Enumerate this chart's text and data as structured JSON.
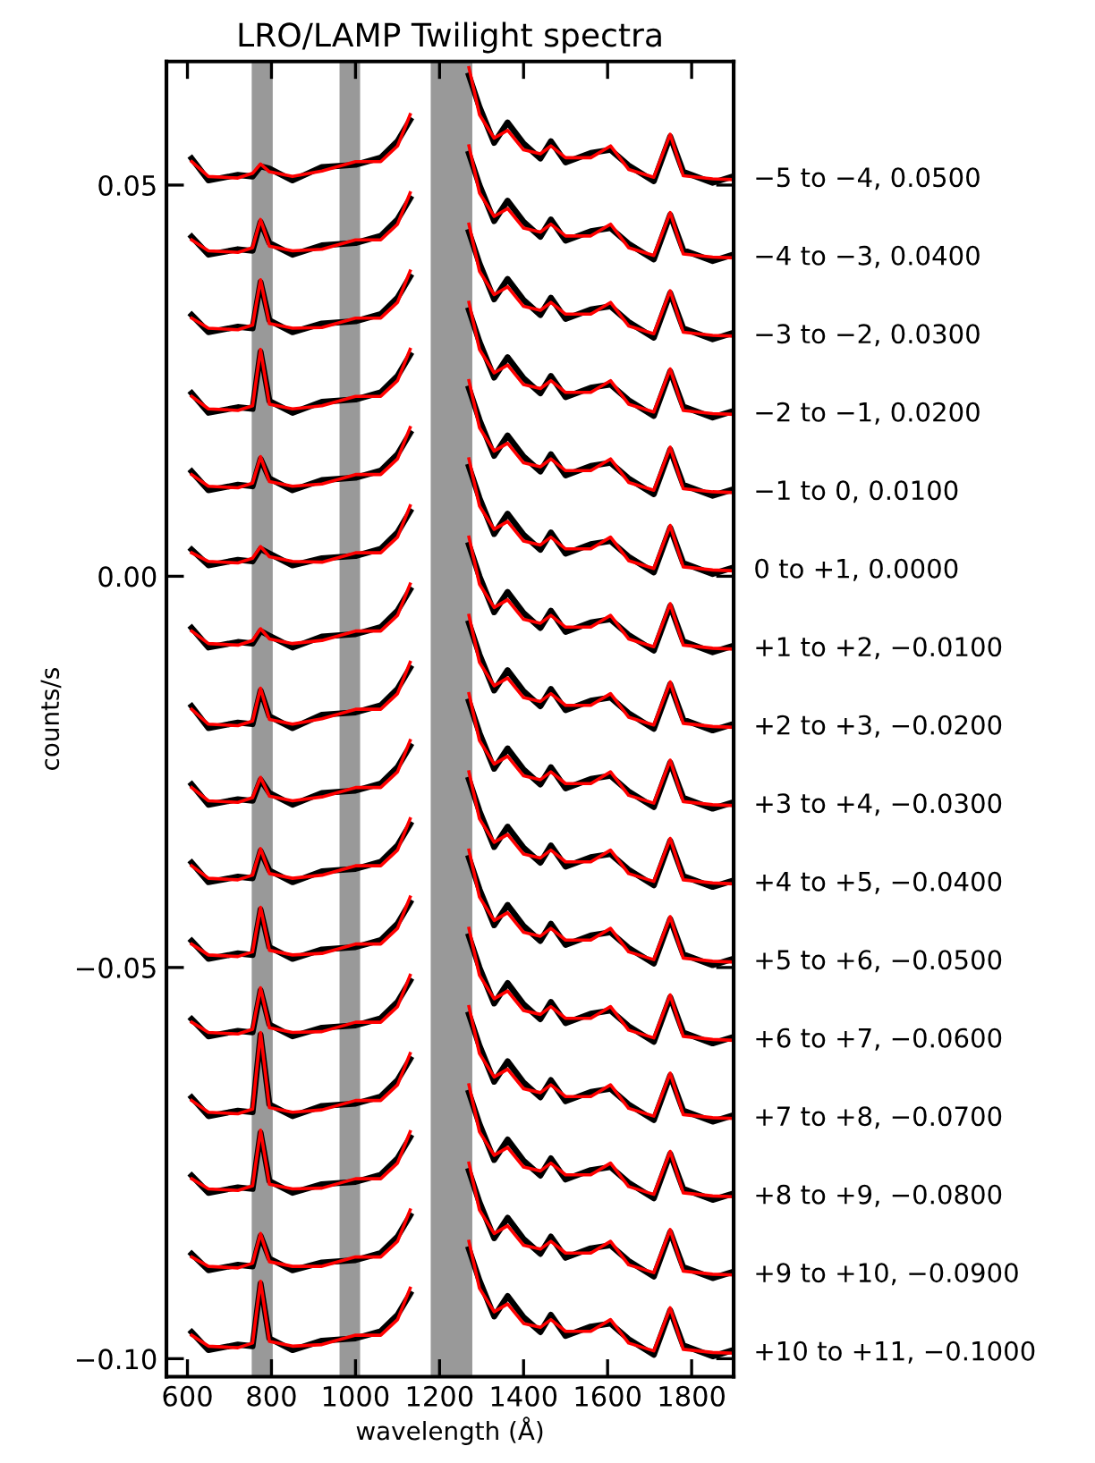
{
  "chart_data": {
    "type": "line",
    "title": "LRO/LAMP Twilight spectra",
    "xlabel": "wavelength (Å)",
    "ylabel": "counts/s",
    "xlim": [
      550,
      1900
    ],
    "ylim": [
      -0.1023,
      0.0658
    ],
    "xticks": [
      600,
      800,
      1000,
      1200,
      1400,
      1600,
      1800
    ],
    "yticks": [
      {
        "value": 0.05,
        "label": "0.05"
      },
      {
        "value": 0.0,
        "label": "0.00"
      },
      {
        "value": -0.05,
        "label": "−0.05"
      },
      {
        "value": -0.1,
        "label": "−0.10"
      }
    ],
    "grid": false,
    "legend": false,
    "line_style": "solid",
    "marker": "none",
    "bands": [
      {
        "axis": "x",
        "from": 753,
        "to": 803,
        "color": "#999999"
      },
      {
        "axis": "x",
        "from": 962,
        "to": 1011,
        "color": "#999999"
      },
      {
        "axis": "x",
        "from": 1179,
        "to": 1278,
        "color": "#999999"
      }
    ],
    "x": [
      610,
      650,
      720,
      755,
      774,
      795,
      850,
      920,
      1000,
      1060,
      1100,
      1130,
      1150,
      1216,
      1270,
      1295,
      1330,
      1362,
      1400,
      1440,
      1465,
      1500,
      1560,
      1607,
      1650,
      1710,
      1749,
      1780,
      1850,
      1898
    ],
    "series": [
      {
        "color": "#000000",
        "values": [
          0.0534,
          0.0506,
          0.0513,
          0.0511,
          0.0524,
          0.0521,
          0.0506,
          0.0523,
          0.0526,
          0.0535,
          0.0556,
          0.0583,
          null,
          null,
          0.064,
          0.06,
          0.0554,
          0.058,
          0.0553,
          0.0534,
          0.0556,
          0.0529,
          0.0541,
          0.0545,
          0.0525,
          0.0505,
          0.0562,
          0.0517,
          0.0503,
          0.0511
        ]
      },
      {
        "name": "−5 to −4, 0.0500",
        "color": "#ff0000",
        "values": [
          0.053,
          0.0511,
          0.0509,
          0.0515,
          0.0527,
          0.0517,
          0.0511,
          0.0518,
          0.053,
          0.053,
          0.055,
          0.059,
          null,
          null,
          0.065,
          0.059,
          0.056,
          0.057,
          0.0545,
          0.054,
          0.055,
          0.0535,
          0.0535,
          0.055,
          0.052,
          0.051,
          0.0565,
          0.0512,
          0.0508,
          0.0507
        ]
      },
      {
        "color": "#000000",
        "values": [
          0.0434,
          0.0411,
          0.0418,
          0.0416,
          0.0453,
          0.0426,
          0.0411,
          0.0423,
          0.0426,
          0.0435,
          0.0456,
          0.0483,
          null,
          null,
          0.054,
          0.05,
          0.0454,
          0.048,
          0.0453,
          0.0434,
          0.0456,
          0.0429,
          0.0441,
          0.0445,
          0.0425,
          0.0405,
          0.0462,
          0.0417,
          0.0403,
          0.0411
        ]
      },
      {
        "name": "−4 to −3, 0.0400",
        "color": "#ff0000",
        "values": [
          0.043,
          0.0416,
          0.0414,
          0.042,
          0.0456,
          0.0422,
          0.0416,
          0.0418,
          0.043,
          0.043,
          0.045,
          0.049,
          null,
          null,
          0.055,
          0.049,
          0.046,
          0.047,
          0.0445,
          0.044,
          0.045,
          0.0435,
          0.0435,
          0.045,
          0.042,
          0.041,
          0.0465,
          0.0412,
          0.0408,
          0.0407
        ]
      },
      {
        "color": "#000000",
        "values": [
          0.0334,
          0.0312,
          0.0319,
          0.0317,
          0.0376,
          0.0327,
          0.0312,
          0.0323,
          0.0326,
          0.0335,
          0.0356,
          0.0383,
          null,
          null,
          0.044,
          0.04,
          0.0354,
          0.038,
          0.0353,
          0.0334,
          0.0356,
          0.0329,
          0.0341,
          0.0345,
          0.0325,
          0.0305,
          0.0362,
          0.0317,
          0.0303,
          0.0311
        ]
      },
      {
        "name": "−3 to −2, 0.0300",
        "color": "#ff0000",
        "values": [
          0.033,
          0.0317,
          0.0315,
          0.0321,
          0.0379,
          0.0323,
          0.0317,
          0.0318,
          0.033,
          0.033,
          0.035,
          0.039,
          null,
          null,
          0.045,
          0.039,
          0.036,
          0.037,
          0.0345,
          0.034,
          0.035,
          0.0335,
          0.0335,
          0.035,
          0.032,
          0.031,
          0.0365,
          0.0312,
          0.0308,
          0.0307
        ]
      },
      {
        "color": "#000000",
        "values": [
          0.0234,
          0.0209,
          0.0216,
          0.0214,
          0.0287,
          0.0224,
          0.0209,
          0.0223,
          0.0226,
          0.0235,
          0.0256,
          0.0283,
          null,
          null,
          0.034,
          0.03,
          0.0254,
          0.028,
          0.0253,
          0.0234,
          0.0256,
          0.0229,
          0.0241,
          0.0245,
          0.0225,
          0.0205,
          0.0262,
          0.0217,
          0.0203,
          0.0211
        ]
      },
      {
        "name": "−2 to −1, 0.0200",
        "color": "#ff0000",
        "values": [
          0.023,
          0.0214,
          0.0212,
          0.0218,
          0.029,
          0.022,
          0.0214,
          0.0218,
          0.023,
          0.023,
          0.025,
          0.029,
          null,
          null,
          0.035,
          0.029,
          0.026,
          0.027,
          0.0245,
          0.024,
          0.025,
          0.0235,
          0.0235,
          0.025,
          0.022,
          0.021,
          0.0265,
          0.0212,
          0.0208,
          0.0207
        ]
      },
      {
        "color": "#000000",
        "values": [
          0.0134,
          0.011,
          0.0117,
          0.0115,
          0.015,
          0.0125,
          0.011,
          0.0123,
          0.0126,
          0.0135,
          0.0156,
          0.0183,
          null,
          null,
          0.024,
          0.02,
          0.0154,
          0.018,
          0.0153,
          0.0134,
          0.0156,
          0.0129,
          0.0141,
          0.0145,
          0.0125,
          0.0105,
          0.0162,
          0.0117,
          0.0103,
          0.0111
        ]
      },
      {
        "name": "−1 to 0, 0.0100",
        "color": "#ff0000",
        "values": [
          0.013,
          0.0115,
          0.0113,
          0.0119,
          0.0153,
          0.0121,
          0.0115,
          0.0118,
          0.013,
          0.013,
          0.015,
          0.019,
          null,
          null,
          0.025,
          0.019,
          0.016,
          0.017,
          0.0145,
          0.014,
          0.015,
          0.0135,
          0.0135,
          0.015,
          0.012,
          0.011,
          0.0165,
          0.0112,
          0.0108,
          0.0107
        ]
      },
      {
        "color": "#000000",
        "values": [
          0.0034,
          0.0014,
          0.0021,
          0.0019,
          0.0035,
          0.0029,
          0.0014,
          0.0023,
          0.0026,
          0.0035,
          0.0056,
          0.0083,
          null,
          null,
          0.014,
          0.01,
          0.0054,
          0.008,
          0.0053,
          0.0034,
          0.0056,
          0.0029,
          0.0041,
          0.0045,
          0.0025,
          0.0005,
          0.0062,
          0.0017,
          0.0003,
          0.0011
        ]
      },
      {
        "name": "0 to +1, 0.0000",
        "color": "#ff0000",
        "values": [
          0.003,
          0.0019,
          0.0017,
          0.0023,
          0.0038,
          0.0025,
          0.0019,
          0.0018,
          0.003,
          0.003,
          0.005,
          0.009,
          null,
          null,
          0.015,
          0.009,
          0.006,
          0.007,
          0.0045,
          0.004,
          0.005,
          0.0035,
          0.0035,
          0.005,
          0.002,
          0.001,
          0.0065,
          0.0012,
          0.0008,
          0.0007
        ]
      },
      {
        "color": "#000000",
        "values": [
          -0.0066,
          -0.0091,
          -0.0084,
          -0.0086,
          -0.007,
          -0.0076,
          -0.0091,
          -0.0077,
          -0.0074,
          -0.0065,
          -0.0044,
          -0.0017,
          null,
          null,
          0.004,
          0.0,
          -0.0046,
          -0.002,
          -0.0047,
          -0.0066,
          -0.0044,
          -0.0071,
          -0.0059,
          -0.0055,
          -0.0075,
          -0.0095,
          -0.0038,
          -0.0083,
          -0.0097,
          -0.0089
        ]
      },
      {
        "name": "+1 to +2, −0.0100",
        "color": "#ff0000",
        "values": [
          -0.007,
          -0.0086,
          -0.0088,
          -0.0082,
          -0.0067,
          -0.008,
          -0.0086,
          -0.0082,
          -0.007,
          -0.007,
          -0.005,
          -0.001,
          null,
          null,
          0.005,
          -0.001,
          -0.004,
          -0.003,
          -0.0055,
          -0.006,
          -0.005,
          -0.0065,
          -0.0065,
          -0.005,
          -0.008,
          -0.009,
          -0.0035,
          -0.0088,
          -0.0092,
          -0.0093
        ]
      },
      {
        "color": "#000000",
        "values": [
          -0.0166,
          -0.0194,
          -0.0187,
          -0.0189,
          -0.0146,
          -0.0179,
          -0.0194,
          -0.0177,
          -0.0174,
          -0.0165,
          -0.0144,
          -0.0117,
          null,
          null,
          -0.006,
          -0.01,
          -0.0146,
          -0.012,
          -0.0147,
          -0.0166,
          -0.0144,
          -0.0171,
          -0.0159,
          -0.0155,
          -0.0175,
          -0.0195,
          -0.0138,
          -0.0183,
          -0.0197,
          -0.0189
        ]
      },
      {
        "name": "+2 to +3, −0.0200",
        "color": "#ff0000",
        "values": [
          -0.017,
          -0.0189,
          -0.0191,
          -0.0185,
          -0.0143,
          -0.0183,
          -0.0189,
          -0.0182,
          -0.017,
          -0.017,
          -0.015,
          -0.011,
          null,
          null,
          -0.005,
          -0.011,
          -0.014,
          -0.013,
          -0.0155,
          -0.016,
          -0.015,
          -0.0165,
          -0.0165,
          -0.015,
          -0.018,
          -0.019,
          -0.0135,
          -0.0188,
          -0.0192,
          -0.0193
        ]
      },
      {
        "color": "#000000",
        "values": [
          -0.0266,
          -0.0292,
          -0.0285,
          -0.0287,
          -0.026,
          -0.0277,
          -0.0292,
          -0.0277,
          -0.0274,
          -0.0265,
          -0.0244,
          -0.0217,
          null,
          null,
          -0.016,
          -0.02,
          -0.0246,
          -0.022,
          -0.0247,
          -0.0266,
          -0.0244,
          -0.0271,
          -0.0259,
          -0.0255,
          -0.0275,
          -0.0295,
          -0.0238,
          -0.0283,
          -0.0297,
          -0.0289
        ]
      },
      {
        "name": "+3 to +4, −0.0300",
        "color": "#ff0000",
        "values": [
          -0.027,
          -0.0287,
          -0.0289,
          -0.0283,
          -0.0257,
          -0.0281,
          -0.0287,
          -0.0282,
          -0.027,
          -0.027,
          -0.025,
          -0.021,
          null,
          null,
          -0.015,
          -0.021,
          -0.024,
          -0.023,
          -0.0255,
          -0.026,
          -0.025,
          -0.0265,
          -0.0265,
          -0.025,
          -0.028,
          -0.029,
          -0.0235,
          -0.0288,
          -0.0292,
          -0.0293
        ]
      },
      {
        "color": "#000000",
        "values": [
          -0.0366,
          -0.0391,
          -0.0384,
          -0.0386,
          -0.0351,
          -0.0376,
          -0.0391,
          -0.0377,
          -0.0374,
          -0.0365,
          -0.0344,
          -0.0317,
          null,
          null,
          -0.026,
          -0.03,
          -0.0346,
          -0.032,
          -0.0347,
          -0.0366,
          -0.0344,
          -0.0371,
          -0.0359,
          -0.0355,
          -0.0375,
          -0.0395,
          -0.0338,
          -0.0383,
          -0.0397,
          -0.0389
        ]
      },
      {
        "name": "+4 to +5, −0.0400",
        "color": "#ff0000",
        "values": [
          -0.037,
          -0.0386,
          -0.0388,
          -0.0382,
          -0.0348,
          -0.038,
          -0.0386,
          -0.0382,
          -0.037,
          -0.037,
          -0.035,
          -0.031,
          null,
          null,
          -0.025,
          -0.031,
          -0.034,
          -0.033,
          -0.0355,
          -0.036,
          -0.035,
          -0.0365,
          -0.0365,
          -0.035,
          -0.038,
          -0.039,
          -0.0335,
          -0.0388,
          -0.0392,
          -0.0393
        ]
      },
      {
        "color": "#000000",
        "values": [
          -0.0466,
          -0.0489,
          -0.0482,
          -0.0484,
          -0.0426,
          -0.0474,
          -0.0489,
          -0.0477,
          -0.0474,
          -0.0465,
          -0.0444,
          -0.0417,
          null,
          null,
          -0.036,
          -0.04,
          -0.0446,
          -0.042,
          -0.0447,
          -0.0466,
          -0.0444,
          -0.0471,
          -0.0459,
          -0.0455,
          -0.0475,
          -0.0495,
          -0.0438,
          -0.0483,
          -0.0497,
          -0.0489
        ]
      },
      {
        "name": "+5 to +6, −0.0500",
        "color": "#ff0000",
        "values": [
          -0.047,
          -0.0484,
          -0.0486,
          -0.048,
          -0.0423,
          -0.0478,
          -0.0484,
          -0.0482,
          -0.047,
          -0.047,
          -0.045,
          -0.041,
          null,
          null,
          -0.035,
          -0.041,
          -0.044,
          -0.043,
          -0.0455,
          -0.046,
          -0.045,
          -0.0465,
          -0.0465,
          -0.045,
          -0.048,
          -0.049,
          -0.0435,
          -0.0488,
          -0.0492,
          -0.0493
        ]
      },
      {
        "color": "#000000",
        "values": [
          -0.0566,
          -0.0588,
          -0.0581,
          -0.0583,
          -0.0529,
          -0.0573,
          -0.0588,
          -0.0577,
          -0.0574,
          -0.0565,
          -0.0544,
          -0.0517,
          null,
          null,
          -0.046,
          -0.05,
          -0.0546,
          -0.052,
          -0.0547,
          -0.0566,
          -0.0544,
          -0.0571,
          -0.0559,
          -0.0555,
          -0.0575,
          -0.0595,
          -0.0538,
          -0.0583,
          -0.0597,
          -0.0589
        ]
      },
      {
        "name": "+6 to +7, −0.0600",
        "color": "#ff0000",
        "values": [
          -0.057,
          -0.0583,
          -0.0585,
          -0.0579,
          -0.0526,
          -0.0577,
          -0.0583,
          -0.0582,
          -0.057,
          -0.057,
          -0.055,
          -0.051,
          null,
          null,
          -0.045,
          -0.051,
          -0.054,
          -0.053,
          -0.0555,
          -0.056,
          -0.055,
          -0.0565,
          -0.0565,
          -0.055,
          -0.058,
          -0.059,
          -0.0535,
          -0.0588,
          -0.0592,
          -0.0593
        ]
      },
      {
        "color": "#000000",
        "values": [
          -0.0666,
          -0.069,
          -0.0683,
          -0.0685,
          -0.0586,
          -0.0675,
          -0.069,
          -0.0677,
          -0.0674,
          -0.0665,
          -0.0644,
          -0.0617,
          null,
          null,
          -0.056,
          -0.06,
          -0.0646,
          -0.062,
          -0.0647,
          -0.0666,
          -0.0644,
          -0.0671,
          -0.0659,
          -0.0655,
          -0.0675,
          -0.0695,
          -0.0638,
          -0.0683,
          -0.0697,
          -0.0689
        ]
      },
      {
        "name": "+7 to +8, −0.0700",
        "color": "#ff0000",
        "values": [
          -0.067,
          -0.0685,
          -0.0687,
          -0.0681,
          -0.0583,
          -0.0679,
          -0.0685,
          -0.0682,
          -0.067,
          -0.067,
          -0.065,
          -0.061,
          null,
          null,
          -0.055,
          -0.061,
          -0.064,
          -0.063,
          -0.0655,
          -0.066,
          -0.065,
          -0.0665,
          -0.0665,
          -0.065,
          -0.068,
          -0.069,
          -0.0635,
          -0.0688,
          -0.0692,
          -0.0693
        ]
      },
      {
        "color": "#000000",
        "values": [
          -0.0766,
          -0.0788,
          -0.0781,
          -0.0783,
          -0.0711,
          -0.0773,
          -0.0788,
          -0.0777,
          -0.0774,
          -0.0765,
          -0.0744,
          -0.0717,
          null,
          null,
          -0.066,
          -0.07,
          -0.0746,
          -0.072,
          -0.0747,
          -0.0766,
          -0.0744,
          -0.0771,
          -0.0759,
          -0.0755,
          -0.0775,
          -0.0795,
          -0.0738,
          -0.0783,
          -0.0797,
          -0.0789
        ]
      },
      {
        "name": "+8 to +9, −0.0800",
        "color": "#ff0000",
        "values": [
          -0.077,
          -0.0783,
          -0.0785,
          -0.0779,
          -0.0708,
          -0.0777,
          -0.0783,
          -0.0782,
          -0.077,
          -0.077,
          -0.075,
          -0.071,
          null,
          null,
          -0.065,
          -0.071,
          -0.074,
          -0.073,
          -0.0755,
          -0.076,
          -0.075,
          -0.0765,
          -0.0765,
          -0.075,
          -0.078,
          -0.079,
          -0.0735,
          -0.0788,
          -0.0792,
          -0.0793
        ]
      },
      {
        "color": "#000000",
        "values": [
          -0.0866,
          -0.0887,
          -0.088,
          -0.0882,
          -0.0843,
          -0.0872,
          -0.0887,
          -0.0877,
          -0.0874,
          -0.0865,
          -0.0844,
          -0.0817,
          null,
          null,
          -0.076,
          -0.08,
          -0.0846,
          -0.082,
          -0.0847,
          -0.0866,
          -0.0844,
          -0.0871,
          -0.0859,
          -0.0855,
          -0.0875,
          -0.0895,
          -0.0838,
          -0.0883,
          -0.0897,
          -0.0889
        ]
      },
      {
        "name": "+9 to +10, −0.0900",
        "color": "#ff0000",
        "values": [
          -0.087,
          -0.0882,
          -0.0884,
          -0.0878,
          -0.084,
          -0.0876,
          -0.0882,
          -0.0882,
          -0.087,
          -0.087,
          -0.085,
          -0.081,
          null,
          null,
          -0.075,
          -0.081,
          -0.084,
          -0.083,
          -0.0855,
          -0.086,
          -0.085,
          -0.0865,
          -0.0865,
          -0.085,
          -0.088,
          -0.089,
          -0.0835,
          -0.0888,
          -0.0892,
          -0.0893
        ]
      },
      {
        "color": "#000000",
        "values": [
          -0.0966,
          -0.0989,
          -0.0982,
          -0.0984,
          -0.0904,
          -0.0974,
          -0.0989,
          -0.0977,
          -0.0974,
          -0.0965,
          -0.0944,
          -0.0917,
          null,
          null,
          -0.086,
          -0.09,
          -0.0946,
          -0.092,
          -0.0947,
          -0.0966,
          -0.0944,
          -0.0971,
          -0.0959,
          -0.0955,
          -0.0975,
          -0.0995,
          -0.0938,
          -0.0983,
          -0.0997,
          -0.0989
        ]
      },
      {
        "name": "+10 to +11, −0.1000",
        "color": "#ff0000",
        "values": [
          -0.097,
          -0.0984,
          -0.0986,
          -0.098,
          -0.0901,
          -0.0978,
          -0.0984,
          -0.0982,
          -0.097,
          -0.097,
          -0.095,
          -0.091,
          null,
          null,
          -0.085,
          -0.091,
          -0.094,
          -0.093,
          -0.0955,
          -0.096,
          -0.095,
          -0.0965,
          -0.0965,
          -0.095,
          -0.098,
          -0.099,
          -0.0935,
          -0.0988,
          -0.0992,
          -0.0993
        ]
      }
    ]
  }
}
